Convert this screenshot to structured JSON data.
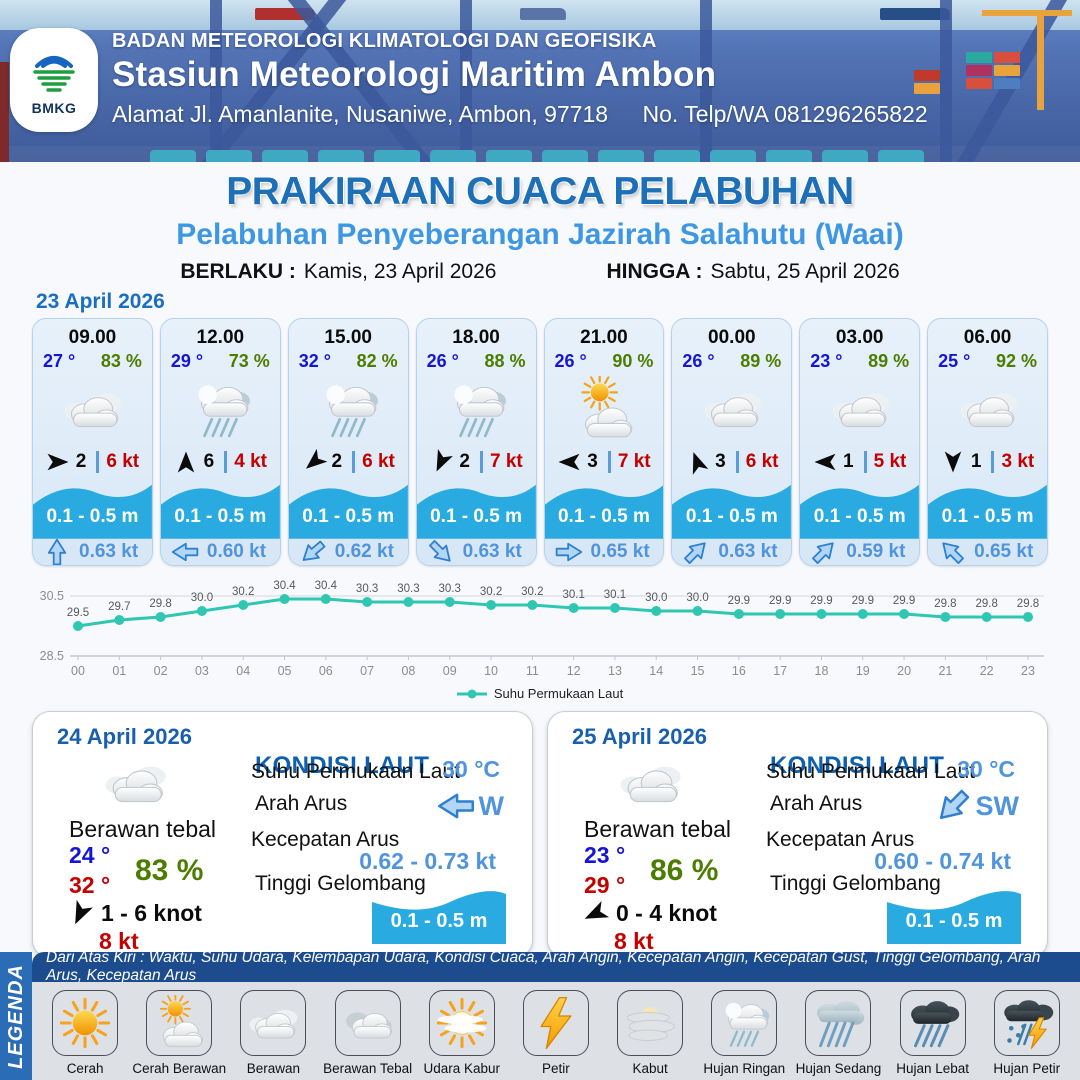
{
  "header": {
    "agency": "BADAN METEOROLOGI KLIMATOLOGI DAN GEOFISIKA",
    "station": "Stasiun Meteorologi Maritim Ambon",
    "address": "Alamat Jl. Amanlanite, Nusaniwe, Ambon, 97718",
    "phone_label": "No. Telp/WA",
    "phone": "081296265822",
    "logo_text": "BMKG"
  },
  "title": {
    "main": "PRAKIRAAN CUACA PELABUHAN",
    "subtitle": "Pelabuhan Penyeberangan Jazirah Salahutu (Waai)",
    "berlaku_label": "BERLAKU :",
    "berlaku_value": "Kamis, 23 April 2026",
    "hingga_label": "HINGGA :",
    "hingga_value": "Sabtu, 25 April 2026"
  },
  "forecast": {
    "date": "23 April 2026",
    "cards": [
      {
        "time": "09.00",
        "temp": "27 °",
        "humidity": "83 %",
        "icon": "berawan",
        "wind_dir_deg": 0,
        "wind": "2",
        "gust": "6 kt",
        "wave": "0.1 - 0.5 m",
        "current_dir_deg": -90,
        "current": "0.63 kt"
      },
      {
        "time": "12.00",
        "temp": "29 °",
        "humidity": "73 %",
        "icon": "hujan-ringan",
        "wind_dir_deg": -90,
        "wind": "6",
        "gust": "4 kt",
        "wave": "0.1 - 0.5 m",
        "current_dir_deg": 180,
        "current": "0.60 kt"
      },
      {
        "time": "15.00",
        "temp": "32 °",
        "humidity": "82 %",
        "icon": "hujan-ringan",
        "wind_dir_deg": 140,
        "wind": "2",
        "gust": "6 kt",
        "wave": "0.1 - 0.5 m",
        "current_dir_deg": 140,
        "current": "0.62 kt"
      },
      {
        "time": "18.00",
        "temp": "26 °",
        "humidity": "88 %",
        "icon": "hujan-ringan",
        "wind_dir_deg": 115,
        "wind": "2",
        "gust": "7 kt",
        "wave": "0.1 - 0.5 m",
        "current_dir_deg": 45,
        "current": "0.63 kt"
      },
      {
        "time": "21.00",
        "temp": "26 °",
        "humidity": "90 %",
        "icon": "cerah-berawan",
        "wind_dir_deg": 180,
        "wind": "3",
        "gust": "7 kt",
        "wave": "0.1 - 0.5 m",
        "current_dir_deg": 0,
        "current": "0.65 kt"
      },
      {
        "time": "00.00",
        "temp": "26 °",
        "humidity": "89 %",
        "icon": "berawan",
        "wind_dir_deg": -110,
        "wind": "3",
        "gust": "6 kt",
        "wave": "0.1 - 0.5 m",
        "current_dir_deg": -45,
        "current": "0.63 kt"
      },
      {
        "time": "03.00",
        "temp": "23 °",
        "humidity": "89 %",
        "icon": "berawan",
        "wind_dir_deg": 180,
        "wind": "1",
        "gust": "5 kt",
        "wave": "0.1 - 0.5 m",
        "current_dir_deg": -45,
        "current": "0.59 kt"
      },
      {
        "time": "06.00",
        "temp": "25 °",
        "humidity": "92 %",
        "icon": "berawan",
        "wind_dir_deg": 90,
        "wind": "1",
        "gust": "3 kt",
        "wave": "0.1 - 0.5 m",
        "current_dir_deg": -135,
        "current": "0.65 kt"
      }
    ]
  },
  "chart_data": {
    "type": "line",
    "x": [
      "00",
      "01",
      "02",
      "03",
      "04",
      "05",
      "06",
      "07",
      "08",
      "09",
      "10",
      "11",
      "12",
      "13",
      "14",
      "15",
      "16",
      "17",
      "18",
      "19",
      "20",
      "21",
      "22",
      "23"
    ],
    "values": [
      29.5,
      29.7,
      29.8,
      30.0,
      30.2,
      30.4,
      30.4,
      30.3,
      30.3,
      30.3,
      30.2,
      30.2,
      30.1,
      30.1,
      30.0,
      30.0,
      29.9,
      29.9,
      29.9,
      29.9,
      29.9,
      29.8,
      29.8,
      29.8
    ],
    "ylim": [
      28.5,
      30.5
    ],
    "yticks": [
      "30.5",
      "28.5"
    ],
    "legend": "Suhu Permukaan Laut",
    "color": "#2fc7b2",
    "grid": true,
    "legend_position": "bottom"
  },
  "days": [
    {
      "date": "24 April 2026",
      "icon": "berawan",
      "condition": "Berawan tebal",
      "temp_min": "24 °",
      "temp_max": "32 °",
      "humidity": "83 %",
      "wind_dir_deg": 115,
      "wind_range": "1  - 6 knot",
      "gust": "8 kt",
      "sea": {
        "heading": "KONDISI LAUT",
        "sst_label": "Suhu Permukaan Laut",
        "sst": "30 °C",
        "dir_label": "Arah Arus",
        "dir": "W",
        "dir_deg": 180,
        "speed_label": "Kecepatan Arus",
        "speed": "0.62 - 0.73 kt",
        "wave_label": "Tinggi Gelombang",
        "wave": "0.1 - 0.5 m"
      }
    },
    {
      "date": "25 April 2026",
      "icon": "berawan",
      "condition": "Berawan tebal",
      "temp_min": "23 °",
      "temp_max": "29 °",
      "humidity": "86 %",
      "wind_dir_deg": 155,
      "wind_range": "0  - 4 knot",
      "gust": "8 kt",
      "sea": {
        "heading": "KONDISI LAUT",
        "sst_label": "Suhu Permukaan Laut",
        "sst": "30 °C",
        "dir_label": "Arah Arus",
        "dir": "SW",
        "dir_deg": 135,
        "speed_label": "Kecepatan Arus",
        "speed": "0.60 - 0.74 kt",
        "wave_label": "Tinggi Gelombang",
        "wave": "0.1 - 0.5 m"
      }
    }
  ],
  "legend": {
    "sidebar": "LEGENDA",
    "header": "Dari Atas Kiri : Waktu, Suhu Udara, Kelembapan Udara, Kondisi Cuaca, Arah Angin, Kecepatan Angin, Kecepatan Gust, Tinggi Gelombang, Arah Arus, Kecepatan Arus",
    "items": [
      {
        "label": "Cerah",
        "icon": "cerah"
      },
      {
        "label": "Cerah Berawan",
        "icon": "cerah-berawan"
      },
      {
        "label": "Berawan",
        "icon": "berawan"
      },
      {
        "label": "Berawan Tebal",
        "icon": "berawan-tebal"
      },
      {
        "label": "Udara Kabur",
        "icon": "udara-kabur"
      },
      {
        "label": "Petir",
        "icon": "petir"
      },
      {
        "label": "Kabut",
        "icon": "kabut"
      },
      {
        "label": "Hujan Ringan",
        "icon": "hujan-ringan"
      },
      {
        "label": "Hujan Sedang",
        "icon": "hujan-sedang"
      },
      {
        "label": "Hujan Lebat",
        "icon": "hujan-lebat"
      },
      {
        "label": "Hujan Petir",
        "icon": "hujan-petir"
      }
    ]
  },
  "colors": {
    "title_blue": "#1d70b8",
    "subtitle_blue": "#3e97e3",
    "wave_blue": "#29abe2",
    "temp_blue": "#1515d6",
    "humidity_green": "#4c7d00",
    "gust_red": "#c40000",
    "chart_teal": "#2fc7b2",
    "current_blue": "#4f94dd",
    "legend_band_blue": "#2a6cb5",
    "legend_header_navy": "#1c4c8e"
  }
}
